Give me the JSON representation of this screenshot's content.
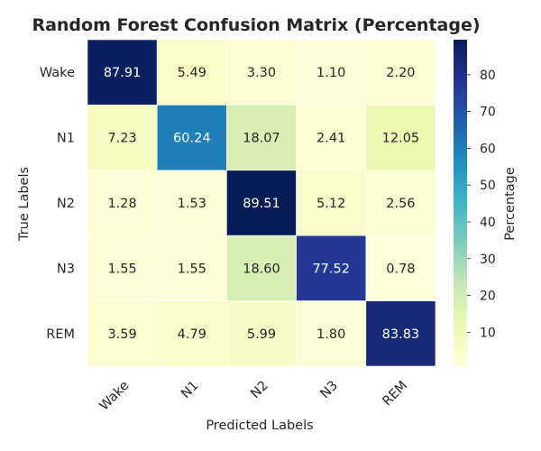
{
  "chart_data": {
    "type": "heatmap",
    "title": "Random Forest Confusion Matrix (Percentage)",
    "xlabel": "Predicted Labels",
    "ylabel": "True Labels",
    "x_categories": [
      "Wake",
      "N1",
      "N2",
      "N3",
      "REM"
    ],
    "y_categories": [
      "Wake",
      "N1",
      "N2",
      "N3",
      "REM"
    ],
    "values": [
      [
        87.91,
        5.49,
        3.3,
        1.1,
        2.2
      ],
      [
        7.23,
        60.24,
        18.07,
        2.41,
        12.05
      ],
      [
        1.28,
        1.53,
        89.51,
        5.12,
        2.56
      ],
      [
        1.55,
        1.55,
        18.6,
        77.52,
        0.78
      ],
      [
        3.59,
        4.79,
        5.99,
        1.8,
        83.83
      ]
    ],
    "colorbar": {
      "label": "Percentage",
      "ticks": [
        10,
        20,
        30,
        40,
        50,
        60,
        70,
        80
      ],
      "range": [
        0.78,
        89.51
      ],
      "colormap": "YlGnBu"
    },
    "grid": false
  }
}
